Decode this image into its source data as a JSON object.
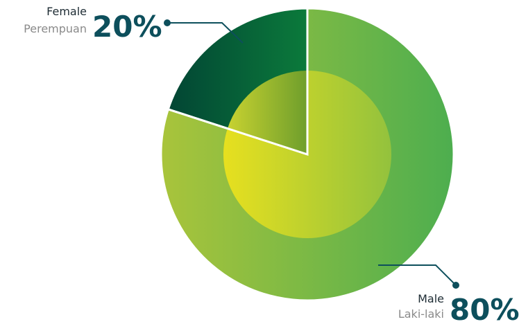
{
  "chart_data": {
    "type": "pie",
    "categories": [
      "Male",
      "Female"
    ],
    "subcategories": [
      "Laki-laki",
      "Perempuan"
    ],
    "values": [
      80,
      20
    ],
    "value_labels": [
      "80%",
      "20%"
    ],
    "colors": [
      [
        "#a9c43b",
        "#4dae4f"
      ],
      [
        "#024534",
        "#0b7a3b"
      ]
    ]
  }
}
